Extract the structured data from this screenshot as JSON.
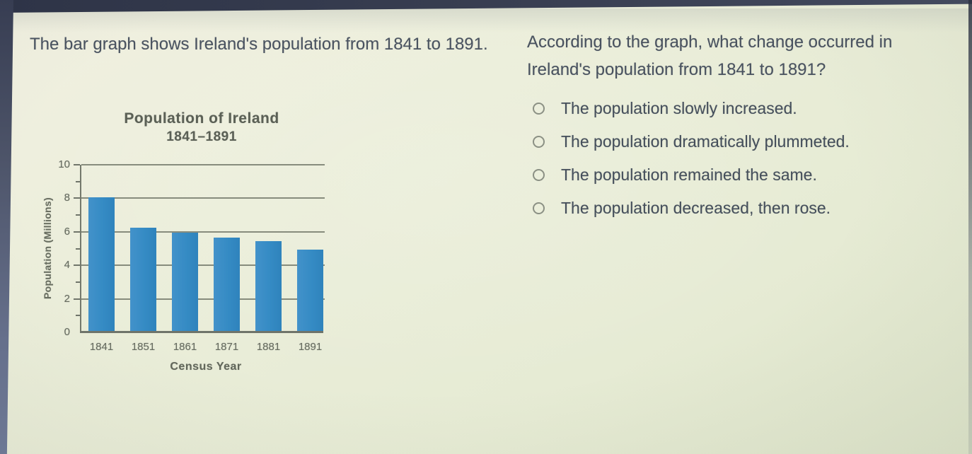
{
  "page": {
    "background_color": "#eaeeda",
    "edge_bar_color": "#3a4053"
  },
  "left_panel": {
    "intro_text": "The bar graph shows Ireland's population from 1841 to 1891."
  },
  "chart_data": {
    "type": "bar",
    "title": "Population of Ireland",
    "subtitle": "1841–1891",
    "categories": [
      "1841",
      "1851",
      "1861",
      "1871",
      "1881",
      "1891"
    ],
    "values": [
      8.0,
      6.2,
      5.9,
      5.6,
      5.4,
      4.9
    ],
    "xlabel": "Census Year",
    "ylabel": "Population (Millions)",
    "ylim": [
      0,
      10
    ],
    "yticks_labeled": [
      0,
      2,
      4,
      6,
      8,
      10
    ],
    "yticks_minor": [
      1,
      3,
      5,
      7,
      9
    ],
    "gridline_values": [
      2,
      4,
      6,
      8,
      10
    ],
    "bar_color": "#3a8cc7",
    "grid": true,
    "legend": false
  },
  "question": {
    "prompt": "According to the graph, what change occurred in Ireland's population from 1841 to 1891?",
    "options": [
      {
        "label": "The population slowly increased.",
        "selected": false
      },
      {
        "label": "The population dramatically plummeted.",
        "selected": false
      },
      {
        "label": "The population remained the same.",
        "selected": false
      },
      {
        "label": "The population decreased, then rose.",
        "selected": false
      }
    ]
  }
}
